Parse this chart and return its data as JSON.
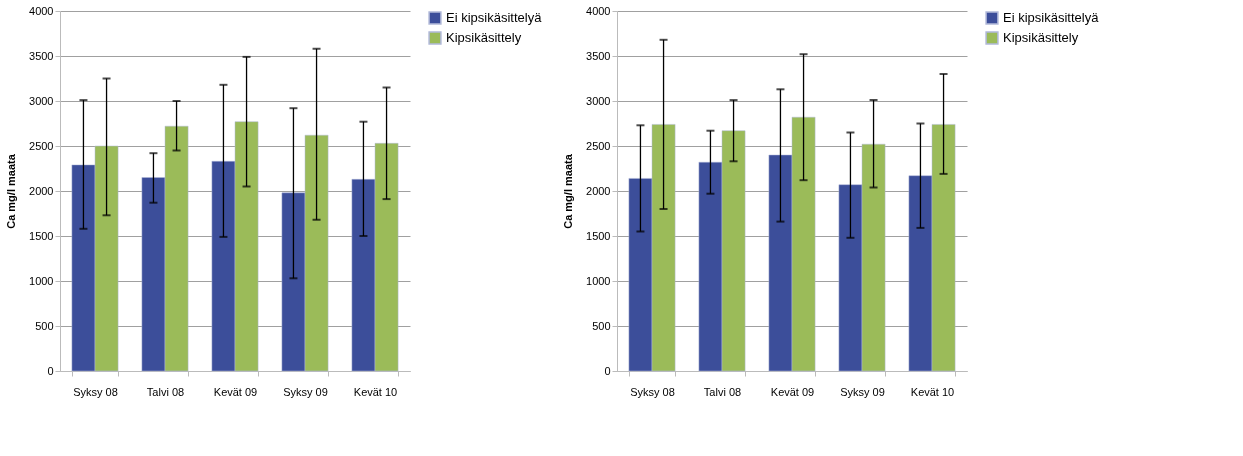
{
  "chart_data": [
    {
      "type": "bar",
      "ylabel": "Ca mg/l maata",
      "categories": [
        "Syksy 08",
        "Talvi 08",
        "Kevät 09",
        "Syksy 09",
        "Kevät 10"
      ],
      "ylim": [
        0,
        4000
      ],
      "yticks": [
        0,
        500,
        1000,
        1500,
        2000,
        2500,
        3000,
        3500,
        4000
      ],
      "grid": "y",
      "legend": "right",
      "series": [
        {
          "name": "Ei kipsikäsittelyä",
          "color": "#3c4e9a",
          "values": [
            2290,
            2150,
            2330,
            1980,
            2130
          ],
          "errors": [
            [
              1580,
              3010
            ],
            [
              1870,
              2420
            ],
            [
              1490,
              3180
            ],
            [
              1030,
              2920
            ],
            [
              1500,
              2770
            ]
          ]
        },
        {
          "name": "Kipsikäsittely",
          "color": "#9bbb59",
          "values": [
            2500,
            2720,
            2770,
            2620,
            2530
          ],
          "errors": [
            [
              1730,
              3250
            ],
            [
              2450,
              3000
            ],
            [
              2050,
              3490
            ],
            [
              1680,
              3580
            ],
            [
              1910,
              3150
            ]
          ]
        }
      ]
    },
    {
      "type": "bar",
      "ylabel": "Ca mg/l maata",
      "categories": [
        "Syksy 08",
        "Talvi 08",
        "Kevät 09",
        "Syksy 09",
        "Kevät 10"
      ],
      "ylim": [
        0,
        4000
      ],
      "yticks": [
        0,
        500,
        1000,
        1500,
        2000,
        2500,
        3000,
        3500,
        4000
      ],
      "grid": "y",
      "legend": "right",
      "series": [
        {
          "name": "Ei kipsikäsittelyä",
          "color": "#3c4e9a",
          "values": [
            2140,
            2320,
            2400,
            2070,
            2170
          ],
          "errors": [
            [
              1550,
              2730
            ],
            [
              1970,
              2670
            ],
            [
              1660,
              3130
            ],
            [
              1480,
              2650
            ],
            [
              1590,
              2750
            ]
          ]
        },
        {
          "name": "Kipsikäsittely",
          "color": "#9bbb59",
          "values": [
            2740,
            2670,
            2820,
            2520,
            2740
          ],
          "errors": [
            [
              1800,
              3680
            ],
            [
              2330,
              3010
            ],
            [
              2120,
              3520
            ],
            [
              2040,
              3010
            ],
            [
              2190,
              3300
            ]
          ]
        }
      ]
    }
  ]
}
